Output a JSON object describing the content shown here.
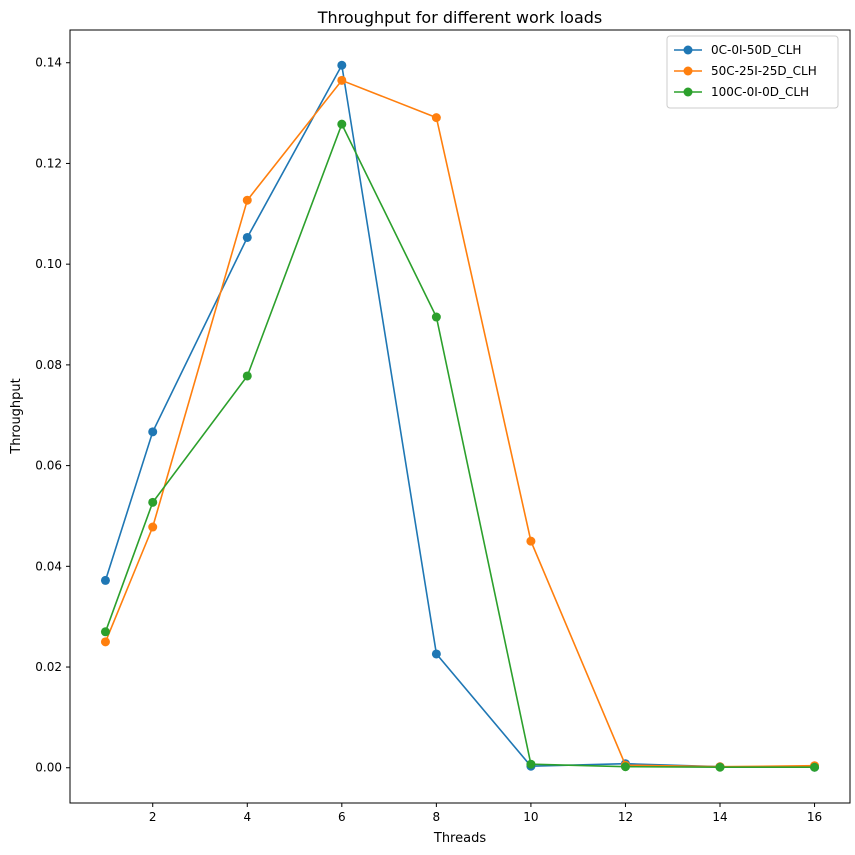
{
  "chart_data": {
    "type": "line",
    "title": "Throughput for different work loads",
    "xlabel": "Threads",
    "ylabel": "Throughput",
    "xlim": [
      0.25,
      16.75
    ],
    "ylim": [
      -0.007,
      0.1465
    ],
    "xticks": [
      2,
      4,
      6,
      8,
      10,
      12,
      14,
      16
    ],
    "xtick_labels": [
      "2",
      "4",
      "6",
      "8",
      "10",
      "12",
      "14",
      "16"
    ],
    "yticks": [
      0.0,
      0.02,
      0.04,
      0.06,
      0.08,
      0.1,
      0.12,
      0.14
    ],
    "ytick_labels": [
      "0.00",
      "0.02",
      "0.04",
      "0.06",
      "0.08",
      "0.10",
      "0.12",
      "0.14"
    ],
    "grid": false,
    "legend_position": "top-right",
    "x": [
      1,
      2,
      4,
      6,
      8,
      10,
      12,
      14,
      16
    ],
    "series": [
      {
        "name": "0C-0I-50D_CLH",
        "color": "#1f77b4",
        "values": [
          0.0372,
          0.0667,
          0.1053,
          0.1395,
          0.0226,
          0.0003,
          0.0008,
          0.0002,
          0.0001
        ]
      },
      {
        "name": "50C-25I-25D_CLH",
        "color": "#ff7f0e",
        "values": [
          0.025,
          0.0478,
          0.1127,
          0.1365,
          0.1291,
          0.045,
          0.0005,
          0.0002,
          0.0004
        ]
      },
      {
        "name": "100C-0I-0D_CLH",
        "color": "#2ca02c",
        "values": [
          0.027,
          0.0527,
          0.0778,
          0.1278,
          0.0895,
          0.0007,
          0.0002,
          0.0001,
          0.0001
        ]
      }
    ]
  }
}
